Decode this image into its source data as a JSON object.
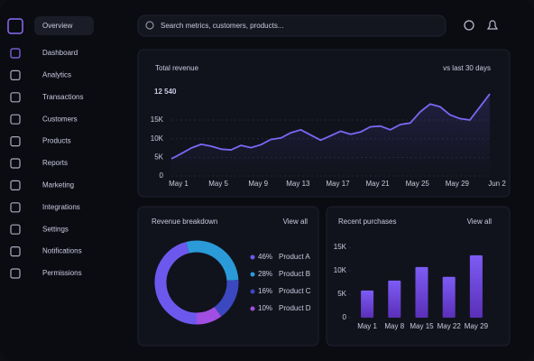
{
  "sidebar": {
    "active": "Overview",
    "items": [
      "Dashboard",
      "Analytics",
      "Transactions",
      "Customers",
      "Products",
      "Reports",
      "Marketing",
      "Integrations",
      "Settings",
      "Notifications",
      "Permissions"
    ]
  },
  "search": {
    "placeholder": "Search metrics, customers, products..."
  },
  "revenue": {
    "title": "Total revenue",
    "period": "vs last 30 days",
    "total": "12 540",
    "chart_data": {
      "type": "line",
      "color": "#7a68f5",
      "grid": true,
      "categories": [
        "May 1",
        null,
        null,
        null,
        "May 5",
        null,
        null,
        null,
        "May 9",
        null,
        null,
        null,
        "May 13",
        null,
        null,
        null,
        "May 17",
        null,
        null,
        null,
        "May 21",
        null,
        null,
        null,
        "May 25",
        null,
        null,
        null,
        "May 29",
        null,
        null,
        null,
        "Jun 2"
      ],
      "values": [
        4600,
        6000,
        7500,
        8500,
        8000,
        7200,
        7000,
        8200,
        7600,
        8400,
        9800,
        10200,
        11600,
        12400,
        11000,
        9600,
        10800,
        12000,
        11200,
        11800,
        13200,
        13400,
        12400,
        13800,
        14200,
        17200,
        19300,
        18600,
        16400,
        15400,
        15000,
        18500,
        22000
      ],
      "ylim": [
        0,
        23000
      ],
      "yticks": [
        0,
        {
          "value": 5000,
          "label": "5K"
        },
        {
          "value": 10000,
          "label": "10K"
        },
        {
          "value": 15000,
          "label": "15K"
        }
      ]
    }
  },
  "breakdown": {
    "title": "Revenue breakdown",
    "link": "View all",
    "chart_data": {
      "type": "pie",
      "categories": [
        "Product A",
        "Product B",
        "Product C",
        "Product D"
      ],
      "values": [
        46,
        28,
        16,
        10
      ],
      "value_labels": [
        "46%",
        "28%",
        "16%",
        "10%"
      ],
      "colors": [
        "#6d58ee",
        "#2a9bd8",
        "#3b48c0",
        "#a14ee2"
      ]
    }
  },
  "purchases": {
    "title": "Recent purchases",
    "link": "View all",
    "chart_data": {
      "type": "bar",
      "color": "#7b55ee",
      "categories": [
        "May 1",
        "May 8",
        "May 15",
        "May 22",
        "May 29"
      ],
      "values": [
        5800,
        7900,
        10800,
        8700,
        13300
      ],
      "ylim": [
        0,
        15000
      ],
      "yticks": [
        0,
        {
          "value": 5000,
          "label": "5K"
        },
        {
          "value": 10000,
          "label": "10K"
        },
        {
          "value": 15000,
          "label": "15K"
        }
      ]
    }
  }
}
